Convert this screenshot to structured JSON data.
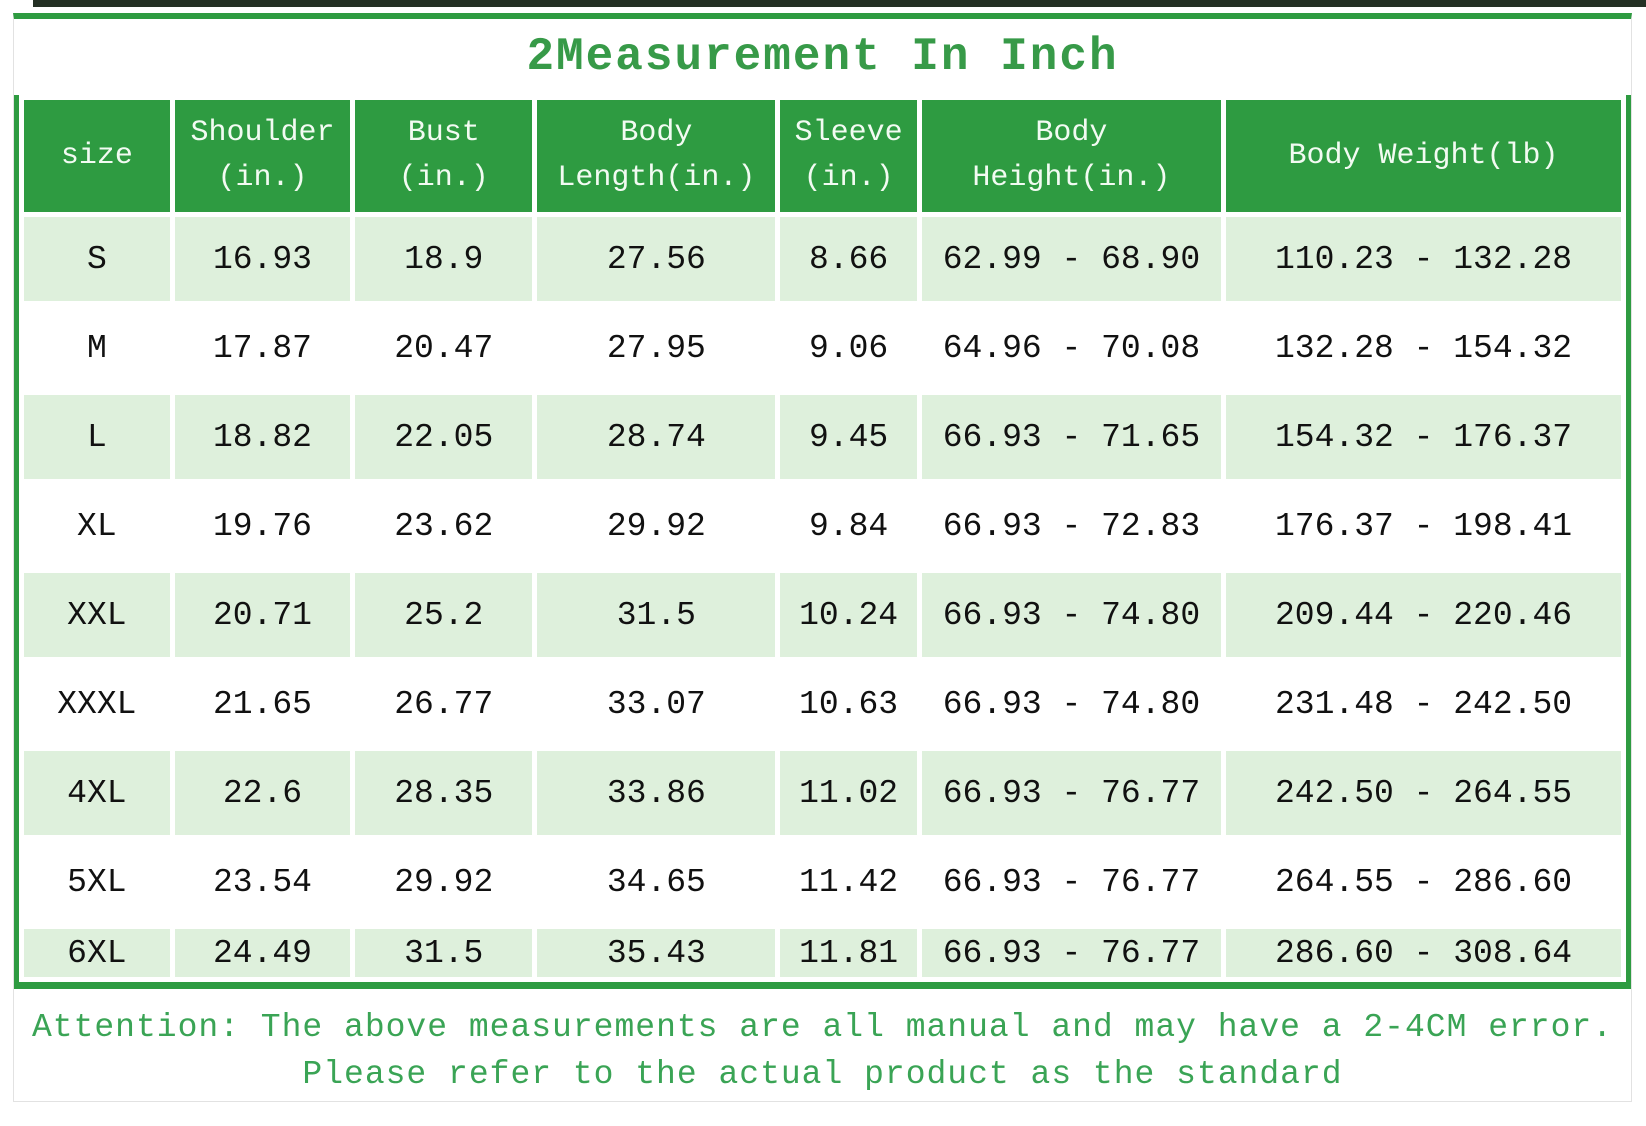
{
  "page": {
    "title": "2Measurement In Inch",
    "note_line1": "Attention: The above measurements are all manual and may have a 2-4CM error.",
    "note_line2": "Please refer to the actual product as the standard"
  },
  "colors": {
    "accent_green": "#2e9b41",
    "title_green": "#379a48",
    "note_green": "#3aa455",
    "shaded_row": "#def0dc"
  },
  "table": {
    "columns": [
      "size",
      "Shoulder\n(in.)",
      "Bust\n(in.)",
      "Body\nLength(in.)",
      "Sleeve\n(in.)",
      "Body\nHeight(in.)",
      "Body Weight(lb)"
    ],
    "rows": [
      {
        "size": "S",
        "values": [
          "16.93",
          "18.9",
          "27.56",
          "8.66",
          "62.99 - 68.90",
          "110.23 - 132.28"
        ]
      },
      {
        "size": "M",
        "values": [
          "17.87",
          "20.47",
          "27.95",
          "9.06",
          "64.96 - 70.08",
          "132.28 - 154.32"
        ]
      },
      {
        "size": "L",
        "values": [
          "18.82",
          "22.05",
          "28.74",
          "9.45",
          "66.93 - 71.65",
          "154.32 - 176.37"
        ]
      },
      {
        "size": "XL",
        "values": [
          "19.76",
          "23.62",
          "29.92",
          "9.84",
          "66.93 - 72.83",
          "176.37 - 198.41"
        ]
      },
      {
        "size": "XXL",
        "values": [
          "20.71",
          "25.2",
          "31.5",
          "10.24",
          "66.93 - 74.80",
          "209.44 - 220.46"
        ]
      },
      {
        "size": "XXXL",
        "values": [
          "21.65",
          "26.77",
          "33.07",
          "10.63",
          "66.93 - 74.80",
          "231.48 - 242.50"
        ]
      },
      {
        "size": "4XL",
        "values": [
          "22.6",
          "28.35",
          "33.86",
          "11.02",
          "66.93 - 76.77",
          "242.50 - 264.55"
        ]
      },
      {
        "size": "5XL",
        "values": [
          "23.54",
          "29.92",
          "34.65",
          "11.42",
          "66.93 - 76.77",
          "264.55 - 286.60"
        ]
      },
      {
        "size": "6XL",
        "values": [
          "24.49",
          "31.5",
          "35.43",
          "11.81",
          "66.93 - 76.77",
          "286.60 - 308.64"
        ]
      }
    ]
  }
}
